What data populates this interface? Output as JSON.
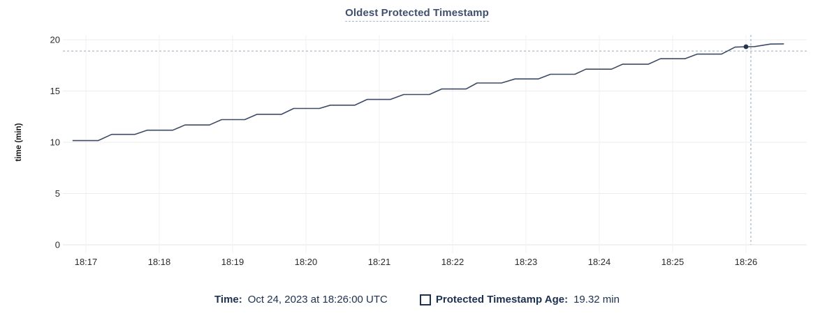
{
  "title": "Oldest Protected Timestamp",
  "legend": {
    "time_label": "Time:",
    "time_value": "Oct 24, 2023 at 18:26:00 UTC",
    "series_label": "Protected Timestamp Age:",
    "series_value": "19.32 min",
    "checkbox_icon": "empty-square"
  },
  "colors": {
    "line": "#3c4b66",
    "dot": "#26334d",
    "crosshair": "#a3b4c3",
    "grid_h": "#ececec",
    "grid_v": "#f1f1f1",
    "axis_line": "#e3e3e3",
    "axis_text": "#2b2b2b",
    "title_text": "#3e506e",
    "legend_text": "#1c3050"
  },
  "chart_data": {
    "type": "line",
    "title": "Oldest Protected Timestamp",
    "xlabel": "",
    "ylabel": "time (min)",
    "ylim": [
      0,
      20
    ],
    "yticks": [
      0,
      5,
      10,
      15,
      20
    ],
    "xticks": [
      "18:17",
      "18:18",
      "18:19",
      "18:20",
      "18:21",
      "18:22",
      "18:23",
      "18:24",
      "18:25",
      "18:26"
    ],
    "x_range": [
      "18:16:41",
      "18:26:50"
    ],
    "grid": true,
    "legend_position": "bottom",
    "series": [
      {
        "name": "Protected Timestamp Age",
        "unit": "min",
        "points": [
          [
            "18:16:49",
            10.16
          ],
          [
            "18:17:10",
            10.16
          ],
          [
            "18:17:21",
            10.77
          ],
          [
            "18:17:40",
            10.77
          ],
          [
            "18:17:50",
            11.18
          ],
          [
            "18:18:11",
            11.18
          ],
          [
            "18:18:21",
            11.69
          ],
          [
            "18:18:41",
            11.69
          ],
          [
            "18:18:51",
            12.21
          ],
          [
            "18:19:10",
            12.21
          ],
          [
            "18:19:20",
            12.73
          ],
          [
            "18:19:40",
            12.73
          ],
          [
            "18:19:50",
            13.3
          ],
          [
            "18:20:11",
            13.3
          ],
          [
            "18:20:20",
            13.62
          ],
          [
            "18:20:40",
            13.62
          ],
          [
            "18:20:50",
            14.18
          ],
          [
            "18:21:09",
            14.18
          ],
          [
            "18:21:20",
            14.66
          ],
          [
            "18:21:41",
            14.66
          ],
          [
            "18:21:51",
            15.2
          ],
          [
            "18:22:11",
            15.2
          ],
          [
            "18:22:20",
            15.78
          ],
          [
            "18:22:40",
            15.78
          ],
          [
            "18:22:51",
            16.18
          ],
          [
            "18:23:10",
            16.18
          ],
          [
            "18:23:20",
            16.63
          ],
          [
            "18:23:40",
            16.63
          ],
          [
            "18:23:49",
            17.13
          ],
          [
            "18:24:10",
            17.13
          ],
          [
            "18:24:19",
            17.61
          ],
          [
            "18:24:40",
            17.61
          ],
          [
            "18:24:50",
            18.15
          ],
          [
            "18:25:10",
            18.15
          ],
          [
            "18:25:20",
            18.6
          ],
          [
            "18:25:40",
            18.6
          ],
          [
            "18:25:51",
            19.28
          ],
          [
            "18:26:00",
            19.32
          ],
          [
            "18:26:07",
            19.33
          ],
          [
            "18:26:20",
            19.58
          ],
          [
            "18:26:31",
            19.6
          ]
        ]
      }
    ],
    "hover": {
      "point_time": "18:26:00",
      "point_value": 19.32,
      "crosshair_time": "18:26:04",
      "crosshair_value": 18.9
    }
  }
}
